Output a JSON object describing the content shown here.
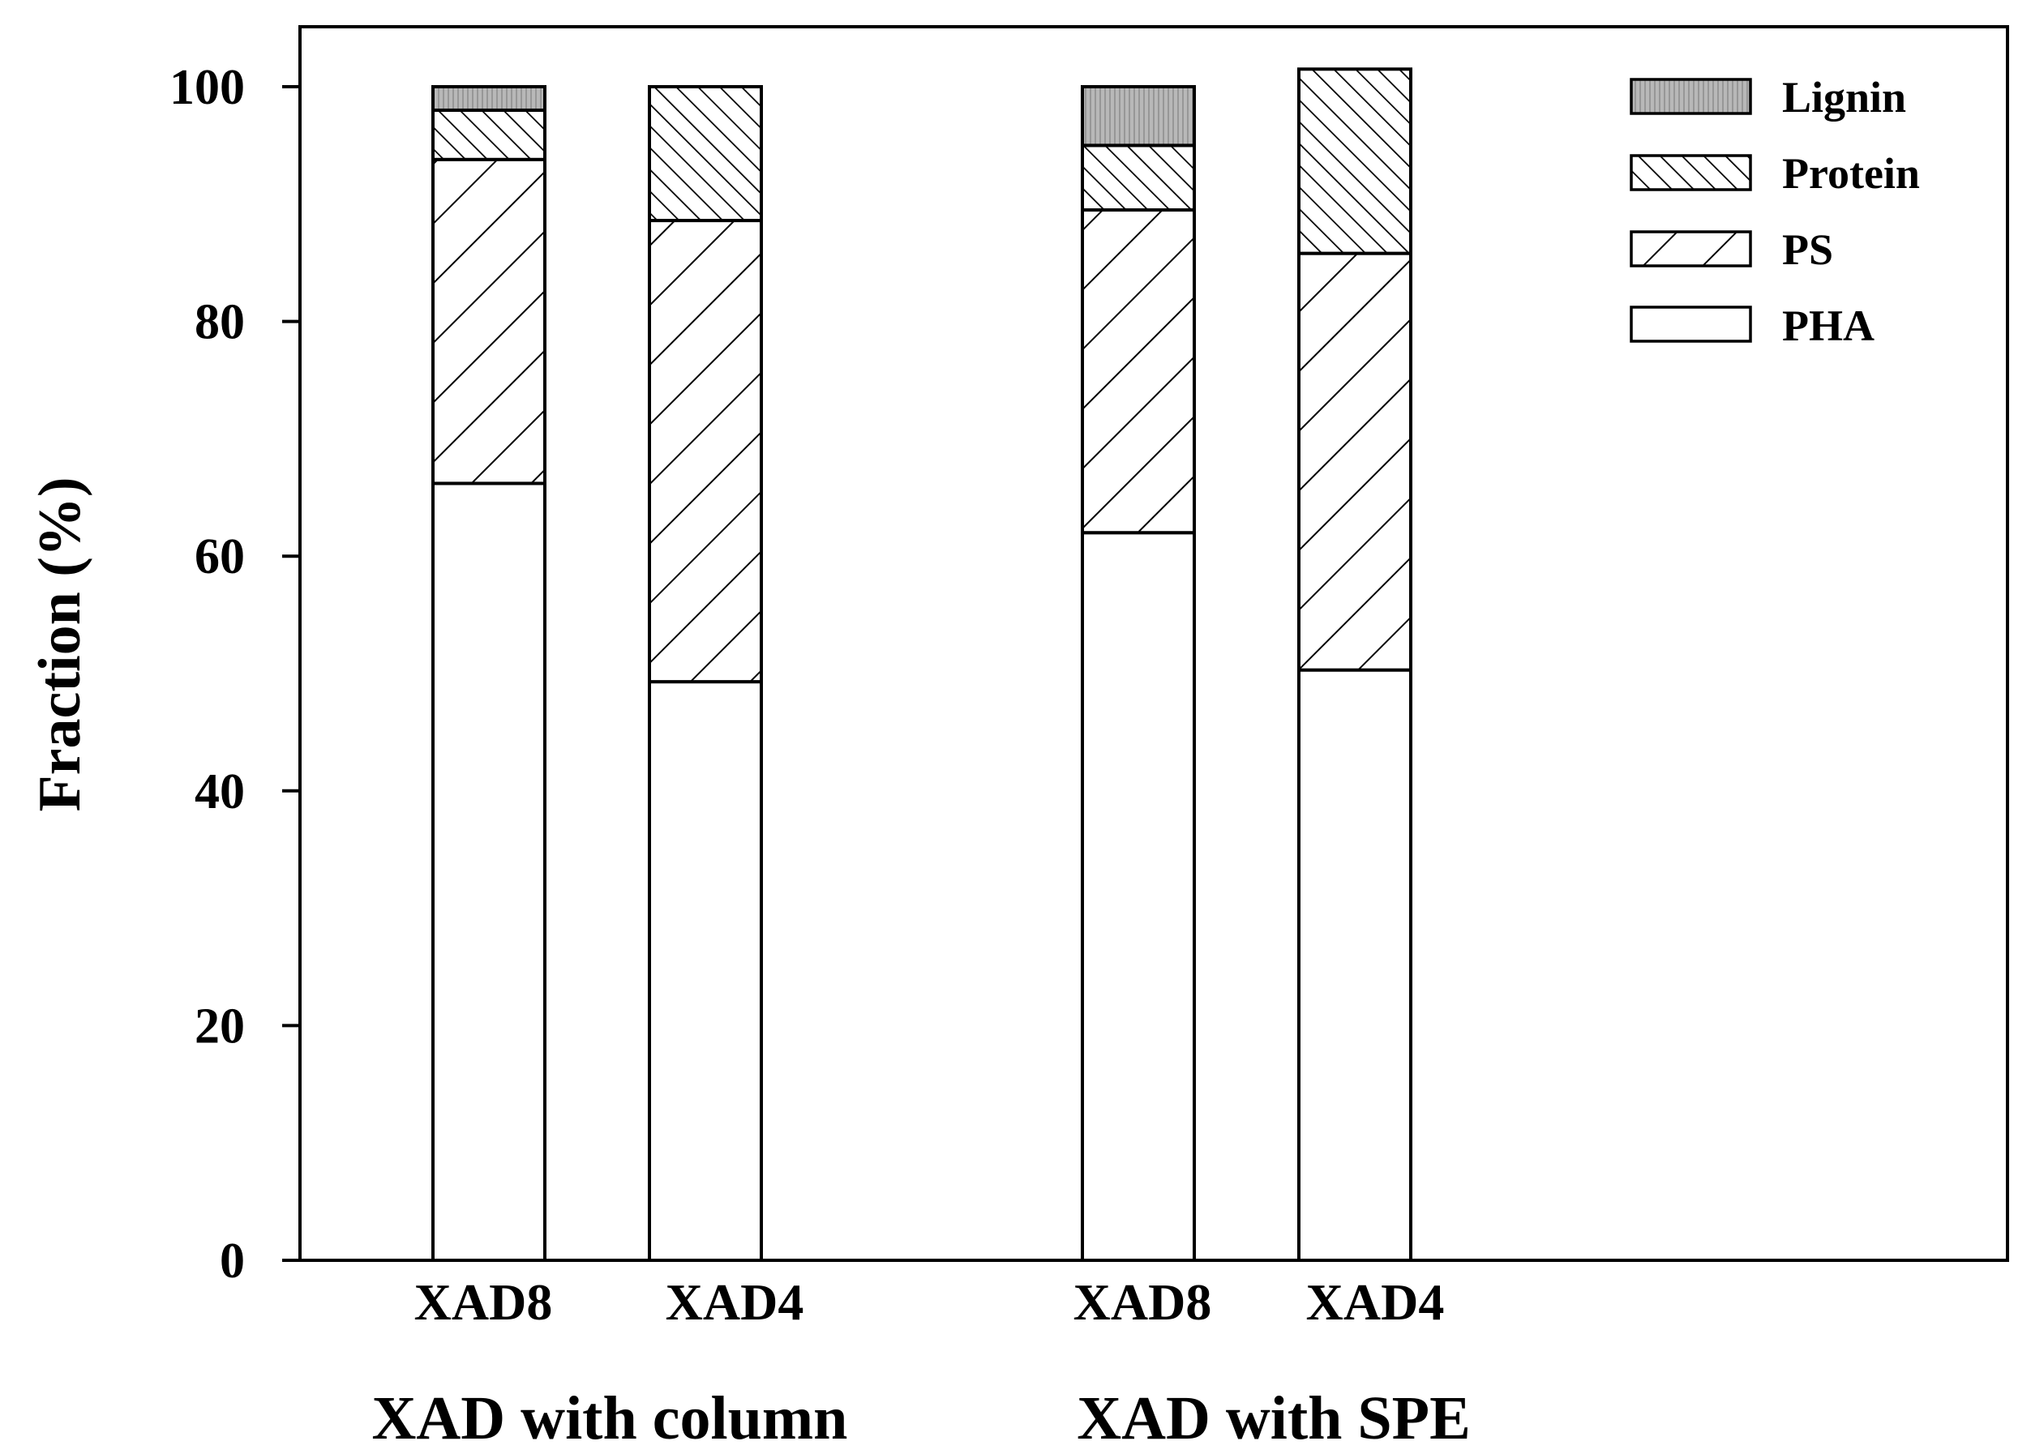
{
  "chart_data": {
    "type": "bar",
    "stacked": true,
    "ylabel": "Fraction (%)",
    "ylim": [
      0,
      100
    ],
    "yticks": [
      0,
      20,
      40,
      60,
      80,
      100
    ],
    "categories": [
      "XAD8",
      "XAD4",
      "XAD8",
      "XAD4"
    ],
    "groups": [
      {
        "label": "XAD with column",
        "members": [
          0,
          1
        ]
      },
      {
        "label": "XAD with SPE",
        "members": [
          2,
          3
        ]
      }
    ],
    "series": [
      {
        "name": "PHA",
        "pattern": "none",
        "values": [
          66.2,
          49.3,
          62.0,
          50.3
        ]
      },
      {
        "name": "PS",
        "pattern": "wide-diagonal-down",
        "values": [
          27.6,
          39.3,
          27.5,
          35.5
        ]
      },
      {
        "name": "Protein",
        "pattern": "dense-diagonal-up",
        "values": [
          4.2,
          11.4,
          5.5,
          15.7
        ]
      },
      {
        "name": "Lignin",
        "pattern": "gray-vertical-lines",
        "values": [
          2.0,
          0.0,
          5.0,
          0.0
        ]
      }
    ],
    "legend": {
      "position": "top-right",
      "order": [
        "Lignin",
        "Protein",
        "PS",
        "PHA"
      ]
    },
    "grid": false,
    "colors": {
      "stroke": "#000000",
      "fill": "#ffffff",
      "lignin": "#b8b8b8"
    }
  }
}
